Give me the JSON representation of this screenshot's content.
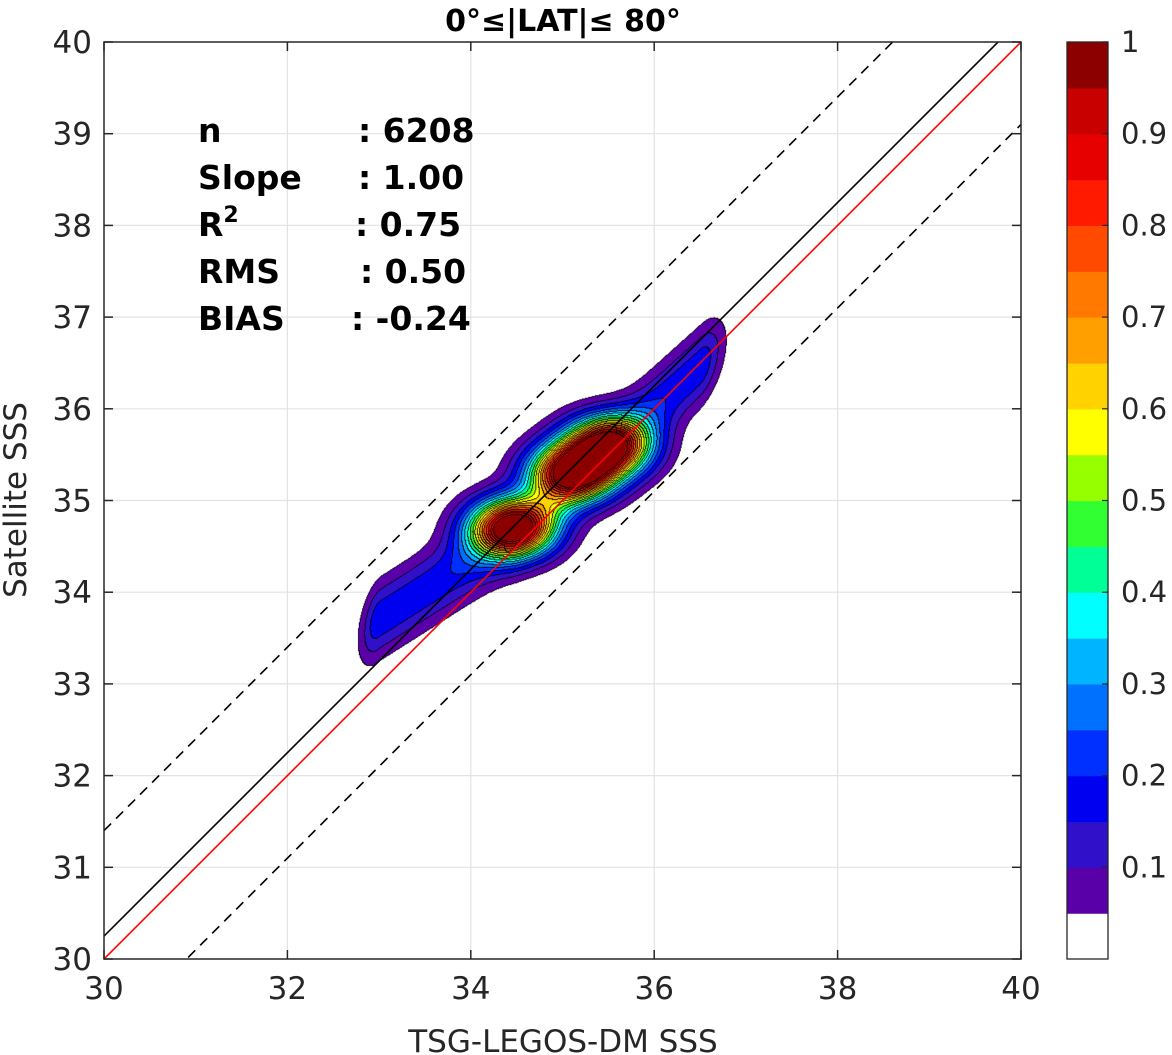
{
  "chart_data": {
    "type": "heatmap",
    "title": "0°≤|LAT|≤ 80°",
    "xlabel": "TSG-LEGOS-DM SSS",
    "ylabel": "Satellite SSS",
    "xlim": [
      30,
      40
    ],
    "ylim": [
      30,
      40
    ],
    "x_ticks": [
      30,
      32,
      34,
      36,
      38,
      40
    ],
    "y_ticks": [
      30,
      31,
      32,
      33,
      34,
      35,
      36,
      37,
      38,
      39,
      40
    ],
    "grid": true,
    "stats": [
      {
        "label": "n",
        "value": ": 6208"
      },
      {
        "label": "Slope",
        "value": ": 1.00"
      },
      {
        "label": "R",
        "sup": "2",
        "value": ": 0.75"
      },
      {
        "label": "RMS",
        "value": ": 0.50"
      },
      {
        "label": "BIAS",
        "value": ": -0.24"
      }
    ],
    "lines": [
      {
        "name": "identity",
        "color": "#ff0000",
        "style": "solid",
        "slope": 1.0,
        "intercept": 0.0
      },
      {
        "name": "fit",
        "color": "#000000",
        "style": "solid",
        "slope": 1.0,
        "intercept": 0.25
      },
      {
        "name": "upper",
        "color": "#000000",
        "style": "dashed",
        "slope": 1.0,
        "intercept": 1.4
      },
      {
        "name": "lower",
        "color": "#000000",
        "style": "dashed",
        "slope": 1.0,
        "intercept": -0.9
      }
    ],
    "density": {
      "center_line": [
        [
          33.0,
          33.7
        ],
        [
          34.5,
          34.65
        ],
        [
          35.5,
          35.55
        ],
        [
          36.5,
          36.45
        ]
      ],
      "peaks": [
        {
          "x": 34.45,
          "y": 34.7,
          "value": 1.0
        },
        {
          "x": 35.1,
          "y": 35.3,
          "value": 0.95
        },
        {
          "x": 35.5,
          "y": 35.6,
          "value": 0.93
        }
      ],
      "levels": [
        0.05,
        0.1,
        0.15,
        0.2,
        0.25,
        0.3,
        0.35,
        0.4,
        0.45,
        0.5,
        0.55,
        0.6,
        0.65,
        0.7,
        0.75,
        0.8,
        0.85,
        0.9,
        0.95
      ]
    },
    "colorbar": {
      "ticks": [
        0.1,
        0.2,
        0.3,
        0.4,
        0.5,
        0.6,
        0.7,
        0.8,
        0.9,
        1
      ],
      "tick_labels": [
        "0.1",
        "0.2",
        "0.3",
        "0.4",
        "0.5",
        "0.6",
        "0.7",
        "0.8",
        "0.9",
        "1"
      ],
      "range": [
        0,
        1
      ],
      "colors": [
        "#ffffff",
        "#5a00a8",
        "#3010c8",
        "#0000f0",
        "#0030ff",
        "#0070ff",
        "#00b4ff",
        "#00ffff",
        "#00ff96",
        "#32ff32",
        "#96ff00",
        "#ffff00",
        "#ffd200",
        "#ffa000",
        "#ff7800",
        "#ff4a00",
        "#ff1a00",
        "#e60000",
        "#c80000",
        "#8c0000"
      ]
    }
  }
}
